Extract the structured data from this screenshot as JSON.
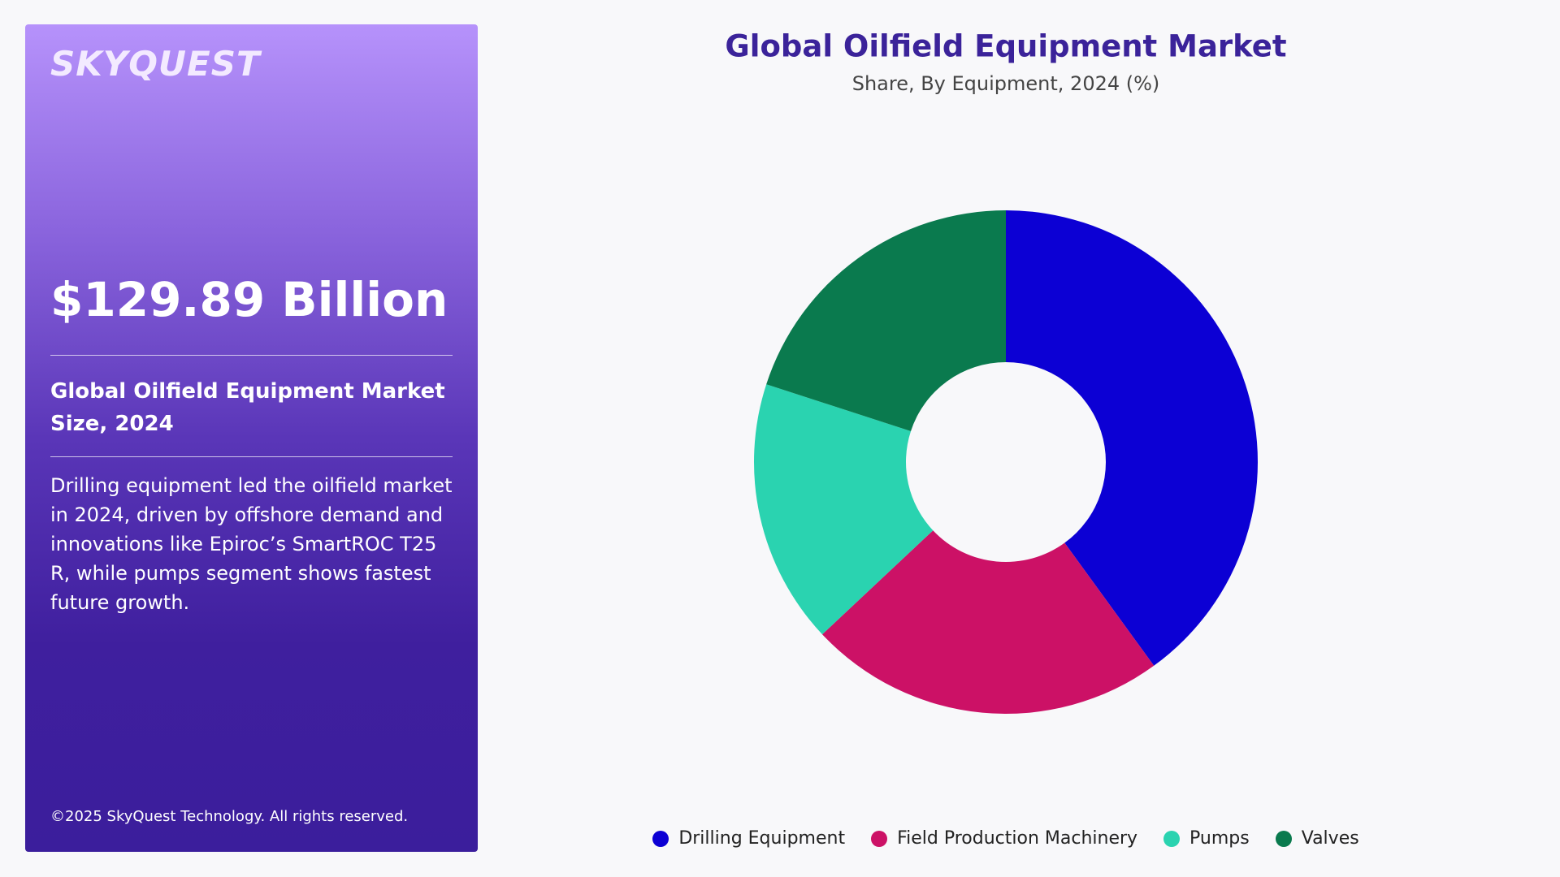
{
  "panel": {
    "logo": "SKYQUEST",
    "headline": "$129.89 Billion",
    "subtitle": "Global Oilfield Equipment Market Size, 2024",
    "description": "Drilling equipment led the oilfield market in 2024, driven by offshore demand and innovations like Epiroc’s SmartROC T25 R, while pumps segment shows fastest future growth.",
    "copyright": "©2025 SkyQuest Technology. All rights reserved."
  },
  "chart_data": {
    "type": "donut",
    "title": "Global Oilfield Equipment Market",
    "subtitle": "Share, By Equipment, 2024 (%)",
    "categories": [
      "Drilling Equipment",
      "Field Production Machinery",
      "Pumps",
      "Valves"
    ],
    "values": [
      40,
      23,
      17,
      20
    ],
    "colors": [
      "#0c00d4",
      "#cc1166",
      "#2ad3b0",
      "#0a7a4e"
    ]
  }
}
